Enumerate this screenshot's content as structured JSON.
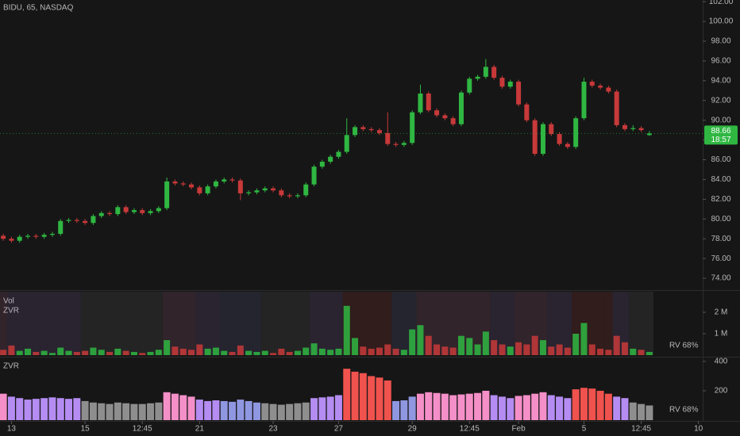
{
  "chart_data": {
    "type": "candlestick",
    "title": "BIDU, 65, NASDAQ",
    "up_color": "#2fb742",
    "down_color": "#c8393a",
    "ohlc": [
      [
        78.3,
        78.5,
        77.8,
        78.0
      ],
      [
        78.0,
        78.2,
        77.6,
        77.8
      ],
      [
        77.8,
        78.4,
        77.6,
        78.2
      ],
      [
        78.2,
        78.5,
        78.0,
        78.3
      ],
      [
        78.3,
        78.5,
        78.0,
        78.2
      ],
      [
        78.2,
        78.6,
        78.0,
        78.4
      ],
      [
        78.4,
        78.7,
        78.2,
        78.5
      ],
      [
        78.5,
        80.0,
        78.3,
        79.8
      ],
      [
        79.8,
        80.1,
        79.6,
        79.9
      ],
      [
        79.9,
        80.1,
        79.6,
        79.8
      ],
      [
        79.8,
        80.0,
        79.4,
        79.6
      ],
      [
        79.6,
        80.5,
        79.4,
        80.3
      ],
      [
        80.3,
        80.8,
        80.1,
        80.6
      ],
      [
        80.6,
        80.8,
        80.3,
        80.5
      ],
      [
        80.5,
        81.4,
        80.3,
        81.2
      ],
      [
        81.2,
        81.4,
        80.5,
        80.7
      ],
      [
        80.7,
        81.1,
        80.5,
        80.9
      ],
      [
        80.9,
        81.1,
        80.4,
        80.6
      ],
      [
        80.6,
        81.0,
        80.4,
        80.8
      ],
      [
        80.8,
        81.3,
        80.6,
        81.1
      ],
      [
        81.1,
        84.2,
        80.9,
        83.8
      ],
      [
        83.8,
        84.0,
        83.4,
        83.6
      ],
      [
        83.6,
        83.8,
        83.3,
        83.5
      ],
      [
        83.5,
        83.7,
        83.0,
        83.2
      ],
      [
        83.2,
        83.4,
        82.4,
        82.6
      ],
      [
        82.6,
        83.5,
        82.4,
        83.3
      ],
      [
        83.3,
        84.0,
        83.1,
        83.8
      ],
      [
        83.8,
        84.2,
        83.6,
        84.0
      ],
      [
        84.0,
        84.2,
        83.7,
        83.9
      ],
      [
        83.9,
        84.1,
        81.9,
        82.6
      ],
      [
        82.6,
        82.9,
        82.4,
        82.7
      ],
      [
        82.7,
        83.1,
        82.5,
        82.9
      ],
      [
        82.9,
        83.3,
        82.7,
        83.1
      ],
      [
        83.1,
        83.3,
        82.7,
        82.9
      ],
      [
        82.9,
        83.1,
        82.2,
        82.4
      ],
      [
        82.4,
        82.6,
        82.1,
        82.3
      ],
      [
        82.3,
        82.6,
        82.1,
        82.4
      ],
      [
        82.4,
        83.7,
        82.2,
        83.5
      ],
      [
        83.5,
        85.5,
        83.3,
        85.3
      ],
      [
        85.3,
        86.0,
        85.1,
        85.8
      ],
      [
        85.8,
        86.5,
        85.6,
        86.3
      ],
      [
        86.3,
        87.0,
        86.1,
        86.8
      ],
      [
        86.8,
        90.2,
        86.6,
        88.5
      ],
      [
        88.5,
        89.5,
        88.3,
        89.3
      ],
      [
        89.3,
        89.5,
        88.9,
        89.1
      ],
      [
        89.1,
        89.3,
        88.8,
        89.0
      ],
      [
        89.0,
        89.2,
        88.5,
        88.7
      ],
      [
        88.7,
        90.8,
        87.4,
        87.6
      ],
      [
        87.6,
        87.8,
        87.3,
        87.5
      ],
      [
        87.5,
        87.9,
        87.3,
        87.7
      ],
      [
        87.7,
        91.0,
        87.5,
        90.8
      ],
      [
        90.8,
        93.6,
        90.6,
        92.7
      ],
      [
        92.7,
        92.9,
        90.8,
        91.0
      ],
      [
        91.0,
        91.2,
        90.3,
        90.5
      ],
      [
        90.5,
        90.7,
        90.0,
        90.2
      ],
      [
        90.2,
        90.4,
        89.4,
        89.6
      ],
      [
        89.6,
        93.0,
        89.4,
        92.8
      ],
      [
        92.8,
        94.4,
        92.6,
        94.2
      ],
      [
        94.2,
        94.6,
        94.0,
        94.4
      ],
      [
        94.4,
        96.2,
        94.2,
        95.4
      ],
      [
        95.4,
        95.6,
        94.1,
        94.3
      ],
      [
        94.3,
        94.5,
        93.2,
        93.4
      ],
      [
        93.4,
        94.1,
        93.2,
        93.9
      ],
      [
        93.9,
        94.1,
        91.4,
        91.6
      ],
      [
        91.6,
        91.8,
        89.8,
        90.0
      ],
      [
        90.0,
        90.2,
        86.4,
        86.6
      ],
      [
        86.6,
        89.8,
        86.4,
        89.6
      ],
      [
        89.6,
        89.8,
        88.4,
        88.6
      ],
      [
        88.6,
        88.8,
        87.4,
        87.6
      ],
      [
        87.6,
        87.8,
        87.1,
        87.3
      ],
      [
        87.3,
        90.4,
        87.1,
        90.2
      ],
      [
        90.2,
        94.3,
        90.0,
        93.9
      ],
      [
        93.9,
        94.1,
        93.3,
        93.5
      ],
      [
        93.5,
        93.7,
        93.1,
        93.3
      ],
      [
        93.3,
        93.5,
        92.7,
        92.9
      ],
      [
        92.9,
        93.1,
        89.3,
        89.5
      ],
      [
        89.5,
        89.7,
        88.9,
        89.1
      ],
      [
        89.1,
        89.5,
        88.9,
        89.2
      ],
      [
        89.2,
        89.4,
        88.8,
        89.0
      ],
      [
        88.5,
        88.9,
        88.4,
        88.66
      ]
    ],
    "xlim": [
      -0.4,
      79.4
    ],
    "xticks": [
      {
        "value": 1,
        "label": "13"
      },
      {
        "value": 10,
        "label": "15"
      },
      {
        "value": 17,
        "label": "12:45"
      },
      {
        "value": 24,
        "label": "21"
      },
      {
        "value": 33,
        "label": "23"
      },
      {
        "value": 41,
        "label": "27"
      },
      {
        "value": 50,
        "label": "29"
      },
      {
        "value": 57,
        "label": "12:45"
      },
      {
        "value": 63,
        "label": "Feb"
      },
      {
        "value": 71,
        "label": "5"
      },
      {
        "value": 78,
        "label": "12:45"
      },
      {
        "value": 85,
        "label": "10"
      }
    ],
    "ylim": [
      72.88,
      102.17
    ],
    "yticks": [
      {
        "value": 74,
        "label": "74.00"
      },
      {
        "value": 76,
        "label": "76.00"
      },
      {
        "value": 78,
        "label": "78.00"
      },
      {
        "value": 80,
        "label": "80.00"
      },
      {
        "value": 82,
        "label": "82.00"
      },
      {
        "value": 84,
        "label": "84.00"
      },
      {
        "value": 86,
        "label": "86.00"
      },
      {
        "value": 88,
        "label": "88.00"
      },
      {
        "value": 90,
        "label": "90.00"
      },
      {
        "value": 92,
        "label": "92.00"
      },
      {
        "value": 94,
        "label": "94.00"
      },
      {
        "value": 96,
        "label": "96.00"
      },
      {
        "value": 98,
        "label": "98.00"
      },
      {
        "value": 100,
        "label": "100.00"
      },
      {
        "value": 102,
        "label": "102.00"
      }
    ],
    "last_label": {
      "price": "88.66",
      "time": "18:57"
    },
    "volume": {
      "labels": [
        "Vol",
        "ZVR"
      ],
      "values": [
        0.25,
        0.45,
        0.2,
        0.3,
        0.15,
        0.2,
        0.1,
        0.35,
        0.2,
        0.15,
        0.2,
        0.35,
        0.25,
        0.15,
        0.3,
        0.2,
        0.15,
        0.1,
        0.15,
        0.25,
        0.7,
        0.4,
        0.3,
        0.25,
        0.5,
        0.3,
        0.35,
        0.2,
        0.15,
        0.45,
        0.2,
        0.15,
        0.2,
        0.1,
        0.3,
        0.15,
        0.2,
        0.35,
        0.55,
        0.3,
        0.25,
        0.3,
        2.3,
        0.8,
        0.4,
        0.3,
        0.35,
        0.5,
        0.3,
        0.25,
        1.2,
        1.4,
        0.9,
        0.5,
        0.4,
        0.35,
        0.9,
        0.8,
        0.5,
        1.1,
        0.7,
        0.5,
        0.4,
        0.6,
        0.5,
        0.9,
        0.7,
        0.4,
        0.5,
        0.35,
        1.0,
        1.5,
        0.5,
        0.3,
        0.25,
        0.9,
        0.6,
        0.3,
        0.25,
        0.15
      ],
      "ylim": [
        0,
        2.96
      ],
      "yticks": [
        {
          "value": 1,
          "label": "1 M"
        },
        {
          "value": 2,
          "label": "2 M"
        }
      ],
      "rv_label": "RV  68%"
    },
    "zvr": {
      "label": "ZVR",
      "values": [
        180,
        160,
        150,
        140,
        145,
        150,
        155,
        150,
        145,
        150,
        130,
        120,
        115,
        110,
        120,
        115,
        110,
        110,
        115,
        120,
        190,
        180,
        170,
        160,
        140,
        130,
        135,
        130,
        125,
        140,
        130,
        120,
        115,
        110,
        105,
        110,
        115,
        120,
        150,
        155,
        160,
        170,
        350,
        330,
        320,
        300,
        290,
        270,
        130,
        135,
        160,
        180,
        190,
        185,
        180,
        170,
        175,
        180,
        185,
        200,
        170,
        160,
        150,
        165,
        170,
        180,
        190,
        170,
        160,
        150,
        210,
        220,
        215,
        200,
        180,
        160,
        150,
        120,
        110,
        100
      ],
      "colors": [
        "#f48fc8",
        "#b48cf2",
        "#b48cf2",
        "#b48cf2",
        "#b48cf2",
        "#b48cf2",
        "#b48cf2",
        "#b48cf2",
        "#b48cf2",
        "#b48cf2",
        "#8e8e8e",
        "#8e8e8e",
        "#8e8e8e",
        "#8e8e8e",
        "#8e8e8e",
        "#8e8e8e",
        "#8e8e8e",
        "#8e8e8e",
        "#8e8e8e",
        "#8e8e8e",
        "#f48fc8",
        "#f48fc8",
        "#f48fc8",
        "#f48fc8",
        "#b48cf2",
        "#b48cf2",
        "#b48cf2",
        "#8f97e0",
        "#8f97e0",
        "#8f97e0",
        "#8f97e0",
        "#8f97e0",
        "#8e8e8e",
        "#8e8e8e",
        "#8e8e8e",
        "#8e8e8e",
        "#8e8e8e",
        "#8e8e8e",
        "#b48cf2",
        "#b48cf2",
        "#b48cf2",
        "#b48cf2",
        "#f0524d",
        "#f0524d",
        "#f0524d",
        "#f0524d",
        "#f0524d",
        "#f0524d",
        "#8f97e0",
        "#8f97e0",
        "#8f97e0",
        "#f48fc8",
        "#f48fc8",
        "#f48fc8",
        "#f48fc8",
        "#f48fc8",
        "#f48fc8",
        "#f48fc8",
        "#f48fc8",
        "#f48fc8",
        "#b48cf2",
        "#b48cf2",
        "#b48cf2",
        "#f48fc8",
        "#f48fc8",
        "#f48fc8",
        "#f48fc8",
        "#b48cf2",
        "#b48cf2",
        "#b48cf2",
        "#f0524d",
        "#f0524d",
        "#f0524d",
        "#f0524d",
        "#f0524d",
        "#b48cf2",
        "#b48cf2",
        "#8e8e8e",
        "#8e8e8e",
        "#8e8e8e"
      ],
      "ylim": [
        0,
        421
      ],
      "yticks": [
        200,
        400
      ],
      "rv_label": "RV  68%"
    }
  }
}
